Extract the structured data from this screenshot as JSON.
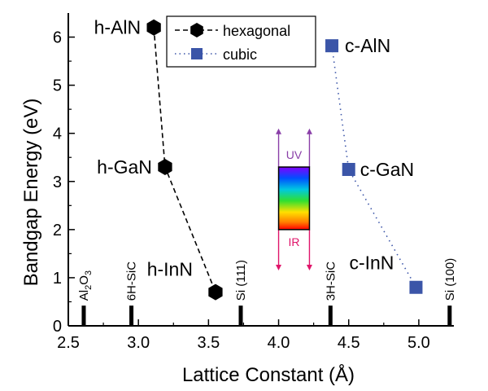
{
  "chart_data": {
    "type": "scatter",
    "xlabel": "Lattice Constant (Å)",
    "ylabel": "Bandgap Energy (eV)",
    "xlim": [
      2.5,
      5.25
    ],
    "ylim": [
      0,
      6.5
    ],
    "x_ticks": [
      "2.5",
      "3.0",
      "3.5",
      "4.0",
      "4.5",
      "5.0"
    ],
    "y_ticks": [
      "0",
      "1",
      "2",
      "3",
      "4",
      "5",
      "6"
    ],
    "grid": false,
    "legend_position": "top-center",
    "series": [
      {
        "name": "hexagonal",
        "marker": "hexagon",
        "line": "dashed",
        "color": "#000000",
        "points": [
          {
            "x": 3.11,
            "y": 6.2,
            "label": "h-AlN"
          },
          {
            "x": 3.19,
            "y": 3.3,
            "label": "h-GaN"
          },
          {
            "x": 3.55,
            "y": 0.7,
            "label": "h-InN"
          }
        ]
      },
      {
        "name": "cubic",
        "marker": "square",
        "line": "dotted",
        "color": "#3B55A8",
        "points": [
          {
            "x": 4.38,
            "y": 5.82,
            "label": "c-AlN"
          },
          {
            "x": 4.5,
            "y": 3.25,
            "label": "c-GaN"
          },
          {
            "x": 4.98,
            "y": 0.8,
            "label": "c-InN"
          }
        ]
      }
    ],
    "substrates": [
      {
        "x": 2.61,
        "label": "Al",
        "sub": "2",
        "tail": "O",
        "sub2": "3"
      },
      {
        "x": 2.95,
        "label": "6H-SiC"
      },
      {
        "x": 3.73,
        "label": "Si (111)"
      },
      {
        "x": 4.37,
        "label": "3H-SiC"
      },
      {
        "x": 5.22,
        "label": "Si (100)"
      }
    ],
    "spectrum_inset": {
      "x_range": [
        4.0,
        4.22
      ],
      "y_range": [
        2.0,
        3.3
      ],
      "top_label": "UV",
      "bottom_label": "IR",
      "uv_color": "#8A3FA8",
      "ir_color": "#E0156A"
    }
  }
}
